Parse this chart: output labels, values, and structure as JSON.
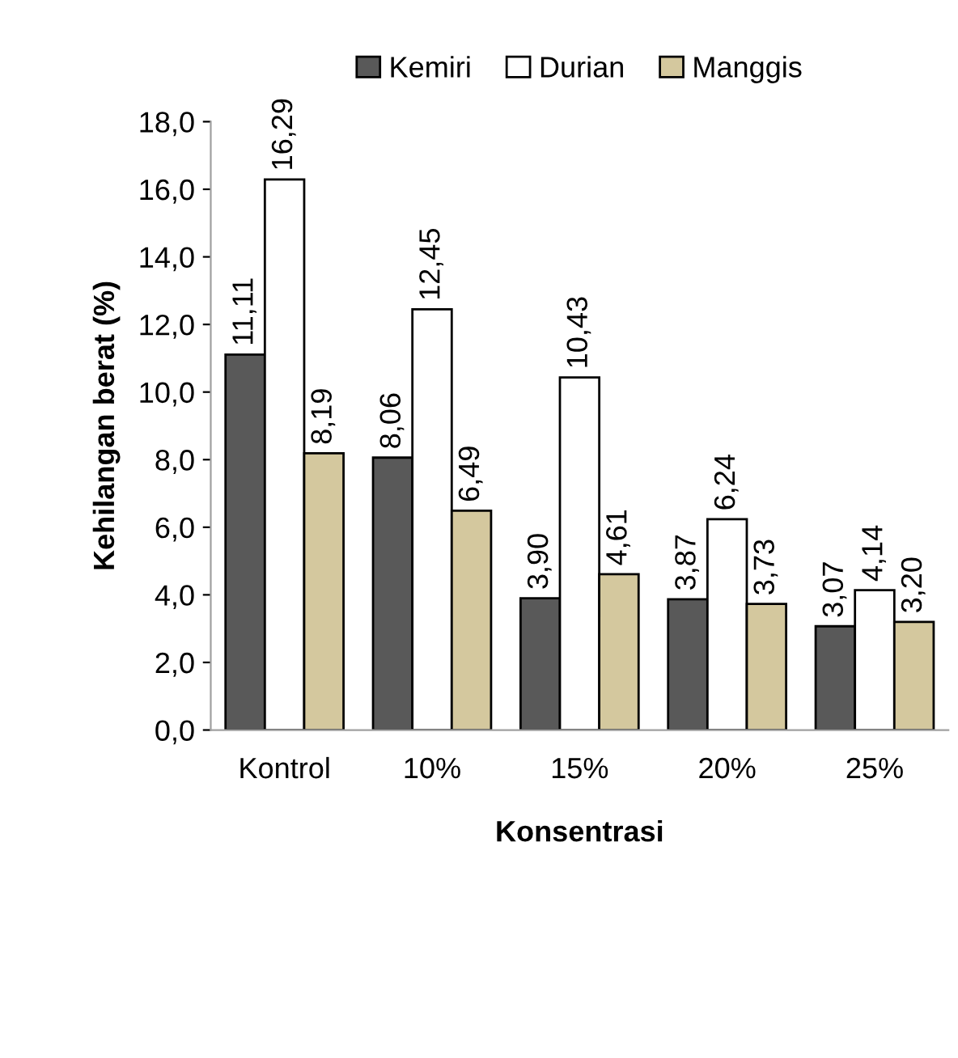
{
  "chart_data": {
    "type": "bar",
    "xlabel": "Konsentrasi",
    "ylabel": "Kehilangan berat (%)",
    "categories": [
      "Kontrol",
      "10%",
      "15%",
      "20%",
      "25%"
    ],
    "series": [
      {
        "name": "Kemiri",
        "color": "#595959",
        "values": [
          11.11,
          8.06,
          3.9,
          3.87,
          3.07
        ],
        "value_labels": [
          "11,11",
          "8,06",
          "3,90",
          "3,87",
          "3,07"
        ]
      },
      {
        "name": "Durian",
        "color": "#ffffff",
        "values": [
          16.29,
          12.45,
          10.43,
          6.24,
          4.14
        ],
        "value_labels": [
          "16,29",
          "12,45",
          "10,43",
          "6,24",
          "4,14"
        ]
      },
      {
        "name": "Manggis",
        "color": "#d4c89e",
        "values": [
          8.19,
          6.49,
          4.61,
          3.73,
          3.2
        ],
        "value_labels": [
          "8,19",
          "6,49",
          "4,61",
          "3,73",
          "3,20"
        ]
      }
    ],
    "ylim": [
      0,
      18
    ],
    "yticks": [
      {
        "value": 0,
        "label": "0,0"
      },
      {
        "value": 2,
        "label": "2,0"
      },
      {
        "value": 4,
        "label": "4,0"
      },
      {
        "value": 6,
        "label": "6,0"
      },
      {
        "value": 8,
        "label": "8,0"
      },
      {
        "value": 10,
        "label": "10,0"
      },
      {
        "value": 12,
        "label": "12,0"
      },
      {
        "value": 14,
        "label": "14,0"
      },
      {
        "value": 16,
        "label": "16,0"
      },
      {
        "value": 18,
        "label": "18,0"
      }
    ],
    "legend": "top",
    "grid": false
  }
}
